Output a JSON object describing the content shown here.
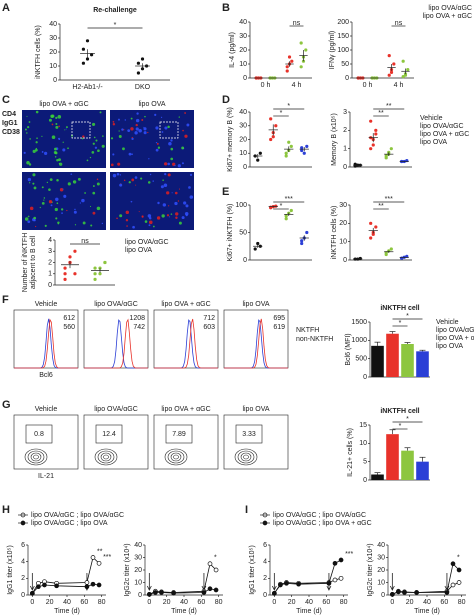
{
  "chart_data": [
    {
      "type": "dot",
      "title": "Re-challenge",
      "ylabel": "iNKTFH cells (%)",
      "ylim": [
        0,
        40
      ],
      "yticks": [
        0,
        10,
        20,
        30,
        40
      ],
      "categories": [
        "H2-Ab1-/-",
        "DKO"
      ],
      "series": [
        {
          "color": "#111111",
          "points": [
            [
              12,
              15,
              18,
              22,
              28
            ],
            [
              5,
              8,
              10,
              12,
              15
            ]
          ],
          "mean": [
            19,
            10
          ],
          "sem": [
            3,
            2
          ]
        }
      ],
      "annotations": [
        {
          "text": "*",
          "pair": [
            0,
            1
          ]
        }
      ]
    },
    {
      "type": "dot",
      "ylabel": "IL-4 (pg/ml)",
      "ylim": [
        0,
        40
      ],
      "yticks": [
        0,
        10,
        20,
        30,
        40
      ],
      "categories": [
        "0 h",
        "4 h"
      ],
      "series": [
        {
          "name": "lipo OVA/αGC",
          "color": "#e8322a",
          "points": [
            [
              0,
              0,
              0,
              0
            ],
            [
              5,
              10,
              12,
              8,
              15
            ]
          ],
          "mean": [
            0,
            10
          ],
          "sem": [
            0,
            2
          ]
        },
        {
          "name": "lipo OVA + αGC",
          "color": "#8dc63f",
          "points": [
            [
              0,
              0,
              0,
              0
            ],
            [
              8,
              12,
              20,
              25,
              15
            ]
          ],
          "mean": [
            0,
            16
          ],
          "sem": [
            0,
            4
          ]
        }
      ],
      "annotations": [
        {
          "text": "ns",
          "pair": [
            2,
            3
          ]
        }
      ]
    },
    {
      "type": "dot",
      "ylabel": "IFNγ (pg/ml)",
      "ylim": [
        0,
        200
      ],
      "yticks": [
        0,
        50,
        100,
        150,
        200
      ],
      "categories": [
        "0 h",
        "4 h"
      ],
      "legend": true,
      "series": [
        {
          "name": "lipo OVA/αGC",
          "color": "#e8322a",
          "points": [
            [
              0,
              0,
              0,
              0
            ],
            [
              10,
              30,
              50,
              80,
              20
            ]
          ],
          "mean": [
            0,
            38
          ],
          "sem": [
            0,
            12
          ]
        },
        {
          "name": "lipo OVA + αGC",
          "color": "#8dc63f",
          "points": [
            [
              0,
              0,
              0,
              0
            ],
            [
              5,
              15,
              30,
              60,
              10
            ]
          ],
          "mean": [
            0,
            24
          ],
          "sem": [
            0,
            10
          ]
        }
      ],
      "annotations": [
        {
          "text": "ns",
          "pair": [
            2,
            3
          ]
        }
      ]
    },
    {
      "type": "dot",
      "ylabel": [
        "Number of iNKTFH",
        "adjacent to B cell"
      ],
      "ylim": [
        0,
        4
      ],
      "yticks": [
        0,
        1,
        2,
        3,
        4
      ],
      "legend": true,
      "series": [
        {
          "name": "lipo OVA/αGC",
          "color": "#e8322a",
          "points": [
            [
              1,
              2,
              3,
              1.5,
              2.5,
              1,
              0.5,
              2
            ]
          ],
          "mean": [
            1.8
          ],
          "sem": [
            0.3
          ]
        },
        {
          "name": "lipo OVA",
          "color": "#8dc63f",
          "points": [
            [
              1,
              1.5,
              2,
              0.5,
              1,
              2,
              1.5
            ]
          ],
          "mean": [
            1.3
          ],
          "sem": [
            0.2
          ]
        }
      ],
      "annotations": [
        {
          "text": "ns",
          "pair": [
            0,
            1
          ]
        }
      ]
    },
    {
      "type": "dot",
      "ylabel": "Ki67+ memory B (%)",
      "ylim": [
        0,
        40
      ],
      "yticks": [
        0,
        10,
        20,
        30,
        40
      ],
      "series": [
        {
          "name": "Vehicle",
          "color": "#111111",
          "points": [
            [
              8,
              5,
              10
            ]
          ],
          "mean": [
            8
          ],
          "sem": [
            1.5
          ]
        },
        {
          "name": "lipo OVA/αGC",
          "color": "#e8322a",
          "points": [
            [
              20,
              25,
              30,
              35,
              22
            ]
          ],
          "mean": [
            27
          ],
          "sem": [
            4
          ]
        },
        {
          "name": "lipo OVA + αGC",
          "color": "#8dc63f",
          "points": [
            [
              10,
              12,
              15,
              8,
              18
            ]
          ],
          "mean": [
            13
          ],
          "sem": [
            2
          ]
        },
        {
          "name": "lipo OVA",
          "color": "#2b3fd6",
          "points": [
            [
              12,
              10,
              15,
              14
            ]
          ],
          "mean": [
            13
          ],
          "sem": [
            1.5
          ]
        }
      ],
      "annotations": [
        {
          "text": "*",
          "pair": [
            1,
            2
          ]
        },
        {
          "text": "*",
          "pair": [
            1,
            3
          ]
        }
      ]
    },
    {
      "type": "dot",
      "ylabel": "Memory B (x10⁵)",
      "ylim": [
        0,
        3
      ],
      "yticks": [
        0,
        1,
        2,
        3
      ],
      "legend": true,
      "series": [
        {
          "name": "Vehicle",
          "color": "#111111",
          "points": [
            [
              0.05,
              0.1,
              0.1,
              0.15,
              0.1
            ]
          ],
          "mean": [
            0.1
          ],
          "sem": [
            0.02
          ]
        },
        {
          "name": "lipo OVA/αGC",
          "color": "#e8322a",
          "points": [
            [
              1,
              1.5,
              2,
              2.5,
              1.2,
              1.8,
              1.6
            ]
          ],
          "mean": [
            1.6
          ],
          "sem": [
            0.25
          ]
        },
        {
          "name": "lipo OVA + αGC",
          "color": "#8dc63f",
          "points": [
            [
              0.5,
              0.8,
              1,
              0.6,
              0.7
            ]
          ],
          "mean": [
            0.7
          ],
          "sem": [
            0.1
          ]
        },
        {
          "name": "lipo OVA",
          "color": "#2b3fd6",
          "points": [
            [
              0.3,
              0.3,
              0.35,
              0.3
            ]
          ],
          "mean": [
            0.3
          ],
          "sem": [
            0.02
          ]
        }
      ],
      "annotations": [
        {
          "text": "**",
          "pair": [
            1,
            2
          ]
        },
        {
          "text": "**",
          "pair": [
            1,
            3
          ]
        }
      ]
    },
    {
      "type": "dot",
      "ylabel": "Ki67+ iNKTFH (%)",
      "ylim": [
        0,
        100
      ],
      "yticks": [
        0,
        50,
        100
      ],
      "series": [
        {
          "name": "Vehicle",
          "color": "#111111",
          "points": [
            [
              20,
              30,
              25
            ]
          ],
          "mean": [
            25
          ],
          "sem": [
            3
          ]
        },
        {
          "name": "lipo OVA/αGC",
          "color": "#e8322a",
          "points": [
            [
              95,
              97,
              98,
              96
            ]
          ],
          "mean": [
            97
          ],
          "sem": [
            1
          ]
        },
        {
          "name": "lipo OVA + αGC",
          "color": "#8dc63f",
          "points": [
            [
              75,
              85,
              90,
              80
            ]
          ],
          "mean": [
            83
          ],
          "sem": [
            3
          ]
        },
        {
          "name": "lipo OVA",
          "color": "#2b3fd6",
          "points": [
            [
              30,
              40,
              50,
              35
            ]
          ],
          "mean": [
            40
          ],
          "sem": [
            5
          ]
        }
      ],
      "annotations": [
        {
          "text": "*",
          "pair": [
            1,
            2
          ]
        },
        {
          "text": "***",
          "pair": [
            1,
            3
          ]
        }
      ]
    },
    {
      "type": "dot",
      "ylabel": "iNKTFH cells (%)",
      "ylim": [
        0,
        30
      ],
      "yticks": [
        0,
        10,
        20,
        30
      ],
      "series": [
        {
          "name": "Vehicle",
          "color": "#111111",
          "points": [
            [
              0.5,
              0.5,
              0.8
            ]
          ],
          "mean": [
            0.6
          ],
          "sem": [
            0.1
          ]
        },
        {
          "name": "lipo OVA/αGC",
          "color": "#e8322a",
          "points": [
            [
              12,
              15,
              18,
              20,
              14
            ]
          ],
          "mean": [
            16
          ],
          "sem": [
            1.5
          ]
        },
        {
          "name": "lipo OVA + αGC",
          "color": "#8dc63f",
          "points": [
            [
              3,
              5,
              6,
              4
            ]
          ],
          "mean": [
            4.5
          ],
          "sem": [
            0.6
          ]
        },
        {
          "name": "lipo OVA",
          "color": "#2b3fd6",
          "points": [
            [
              1,
              1.5,
              2,
              1
            ]
          ],
          "mean": [
            1.4
          ],
          "sem": [
            0.2
          ]
        }
      ],
      "annotations": [
        {
          "text": "**",
          "pair": [
            1,
            2
          ]
        },
        {
          "text": "***",
          "pair": [
            1,
            3
          ]
        }
      ]
    },
    {
      "type": "bar",
      "title": "iNKTFH cell",
      "ylabel": "Bcl6 (MFI)",
      "ylim": [
        0,
        1500
      ],
      "yticks": [
        0,
        500,
        1000,
        1500
      ],
      "legend": true,
      "series": [
        {
          "name": "Vehicle",
          "color": "#111111",
          "values": [
            850
          ],
          "errors": [
            100
          ]
        },
        {
          "name": "lipo OVA/αGC",
          "color": "#e8322a",
          "values": [
            1180
          ],
          "errors": [
            60
          ]
        },
        {
          "name": "lipo OVA + αGC",
          "color": "#8dc63f",
          "values": [
            900
          ],
          "errors": [
            40
          ]
        },
        {
          "name": "lipo OVA",
          "color": "#2b3fd6",
          "values": [
            700
          ],
          "errors": [
            30
          ]
        }
      ],
      "annotations": [
        {
          "text": "*",
          "pair": [
            1,
            2
          ]
        },
        {
          "text": "*",
          "pair": [
            1,
            3
          ]
        }
      ]
    },
    {
      "type": "bar",
      "title": "iNKTFH cell",
      "ylabel": "IL-21+ cells (%)",
      "ylim": [
        0,
        15
      ],
      "yticks": [
        0,
        5,
        10,
        15
      ],
      "series": [
        {
          "color": "#111111",
          "values": [
            1.5
          ],
          "errors": [
            0.5
          ]
        },
        {
          "color": "#e8322a",
          "values": [
            12.5
          ],
          "errors": [
            1.2
          ]
        },
        {
          "color": "#8dc63f",
          "values": [
            8
          ],
          "errors": [
            0.8
          ]
        },
        {
          "color": "#2b3fd6",
          "values": [
            5
          ],
          "errors": [
            1.2
          ]
        }
      ],
      "annotations": [
        {
          "text": "*",
          "pair": [
            1,
            2
          ]
        },
        {
          "text": "*",
          "pair": [
            1,
            3
          ]
        }
      ]
    },
    {
      "type": "line",
      "ylabel": "IgG1 titer (x10⁵)",
      "xlabel": "Time (d)",
      "xlim": [
        -5,
        85
      ],
      "xticks": [
        0,
        20,
        40,
        60,
        80
      ],
      "ylim": [
        0,
        6
      ],
      "yticks": [
        0,
        2,
        4,
        6
      ],
      "legend": true,
      "x": [
        0,
        7,
        14,
        28,
        63,
        70,
        77
      ],
      "series": [
        {
          "name": "lipo OVA/αGC ; lipo OVA/αGC",
          "color": "#111111",
          "marker": "open",
          "values": [
            0.2,
            1.4,
            1.6,
            1.4,
            1.5,
            4.5,
            3.8
          ]
        },
        {
          "name": "lipo OVA/αGC ; lipo OVA",
          "color": "#111111",
          "marker": "filled",
          "values": [
            0.2,
            1.0,
            1.2,
            1.1,
            1.0,
            1.3,
            1.2
          ]
        }
      ],
      "annotations": [
        {
          "text": "**",
          "series": 0,
          "point": 5
        },
        {
          "text": "***",
          "series": 0,
          "point": 6
        }
      ]
    },
    {
      "type": "line",
      "ylabel": "IgG2c titer (x10⁴)",
      "xlabel": "Time (d)",
      "xlim": [
        -5,
        85
      ],
      "xticks": [
        0,
        20,
        40,
        60,
        80
      ],
      "ylim": [
        0,
        40
      ],
      "yticks": [
        0,
        10,
        20,
        30,
        40
      ],
      "x": [
        0,
        7,
        14,
        28,
        63,
        70,
        77
      ],
      "series": [
        {
          "color": "#111111",
          "marker": "open",
          "values": [
            0.5,
            3,
            2.5,
            2,
            3,
            25,
            20
          ]
        },
        {
          "color": "#111111",
          "marker": "filled",
          "values": [
            0.5,
            2,
            2,
            1.5,
            2,
            5,
            4
          ]
        }
      ],
      "annotations": [
        {
          "text": "*",
          "series": 0,
          "point": 5
        }
      ]
    },
    {
      "type": "line",
      "ylabel": "IgG1 titer (x10⁵)",
      "xlabel": "Time (d)",
      "xlim": [
        -5,
        85
      ],
      "xticks": [
        0,
        20,
        40,
        60,
        80
      ],
      "ylim": [
        0,
        6
      ],
      "yticks": [
        0,
        2,
        4,
        6
      ],
      "legend": true,
      "x": [
        0,
        7,
        14,
        28,
        63,
        70,
        77
      ],
      "series": [
        {
          "name": "lipo OVA/αGC ; lipo OVA/αGC",
          "color": "#111111",
          "marker": "open",
          "values": [
            0.2,
            1.3,
            1.5,
            1.4,
            1.5,
            1.8,
            2.0
          ]
        },
        {
          "name": "lipo OVA/αGC ; lipo OVA + αGC",
          "color": "#111111",
          "marker": "filled",
          "values": [
            0.2,
            1.2,
            1.4,
            1.3,
            1.4,
            3.8,
            4.2
          ]
        }
      ],
      "annotations": [
        {
          "text": "***",
          "series": 1,
          "point": 6
        }
      ]
    },
    {
      "type": "line",
      "ylabel": "IgG2c titer (x10⁴)",
      "xlabel": "Time (d)",
      "xlim": [
        -5,
        85
      ],
      "xticks": [
        0,
        20,
        40,
        60,
        80
      ],
      "ylim": [
        0,
        40
      ],
      "yticks": [
        0,
        10,
        20,
        30,
        40
      ],
      "x": [
        0,
        7,
        14,
        28,
        63,
        70,
        77
      ],
      "series": [
        {
          "color": "#111111",
          "marker": "open",
          "values": [
            0.5,
            3,
            2.5,
            2,
            3,
            8,
            10
          ]
        },
        {
          "color": "#111111",
          "marker": "filled",
          "values": [
            0.5,
            2.5,
            2,
            2,
            2,
            25,
            20
          ]
        }
      ],
      "annotations": [
        {
          "text": "*",
          "series": 1,
          "point": 5
        }
      ]
    }
  ],
  "figure": {
    "panels": [
      "A",
      "B",
      "C",
      "D",
      "E",
      "F",
      "G",
      "H",
      "I"
    ],
    "c_images": {
      "labels": [
        "lipo OVA + αGC",
        "lipo OVA"
      ],
      "channels": [
        {
          "text": "CD4",
          "color": "#3ad13a"
        },
        {
          "text": "IgG1",
          "color": "#e02020"
        },
        {
          "text": "CD38",
          "color": "#3050ff"
        }
      ]
    },
    "f_flow": {
      "titles": [
        "Vehicle",
        "lipo OVA/αGC",
        "lipo OVA + αGC",
        "lipo OVA"
      ],
      "nktfh": [
        612,
        1208,
        712,
        695
      ],
      "non_nktfh": [
        560,
        742,
        603,
        619
      ],
      "xlabel": "Bcl6",
      "legend": [
        {
          "text": "NKTFH",
          "color": "#e8322a"
        },
        {
          "text": "non-NKTFH",
          "color": "#2b3fd6"
        }
      ]
    },
    "g_flow": {
      "titles": [
        "Vehicle",
        "lipo OVA/αGC",
        "lipo OVA + αGC",
        "lipo OVA"
      ],
      "values": [
        0.8,
        12.4,
        7.89,
        3.33
      ],
      "xlabel": "IL-21"
    }
  }
}
